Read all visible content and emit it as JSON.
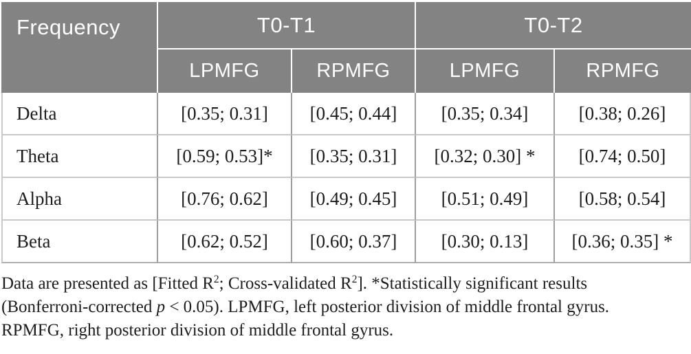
{
  "colors": {
    "header_bg": "#838383",
    "header_text": "#ffffff",
    "body_text": "#1c1c1c",
    "row_divider": "#c9c9c9",
    "column_divider": "#9e9e9e"
  },
  "table": {
    "header": {
      "frequency_label": "Frequency",
      "groups": [
        {
          "label": "T0-T1",
          "columns": [
            "LPMFG",
            "RPMFG"
          ]
        },
        {
          "label": "T0-T2",
          "columns": [
            "LPMFG",
            "RPMFG"
          ]
        }
      ]
    },
    "rows": [
      {
        "frequency": "Delta",
        "values": [
          "[0.35; 0.31]",
          "[0.45; 0.44]",
          "[0.35; 0.34]",
          "[0.38; 0.26]"
        ]
      },
      {
        "frequency": "Theta",
        "values": [
          "[0.59; 0.53]*",
          "[0.35; 0.31]",
          "[0.32; 0.30] *",
          "[0.74; 0.50]"
        ]
      },
      {
        "frequency": "Alpha",
        "values": [
          "[0.76; 0.62]",
          "[0.49; 0.45]",
          "[0.51; 0.49]",
          "[0.58; 0.54]"
        ]
      },
      {
        "frequency": "Beta",
        "values": [
          "[0.62; 0.52]",
          "[0.60; 0.37]",
          "[0.30; 0.13]",
          "[0.36; 0.35] *"
        ]
      }
    ]
  },
  "footnote": {
    "lines": [
      {
        "segments": [
          {
            "t": "Data are presented as [Fitted R"
          },
          {
            "t": "2",
            "s": "sup"
          },
          {
            "t": "; Cross-validated R"
          },
          {
            "t": "2",
            "s": "sup"
          },
          {
            "t": "]. *Statistically significant results"
          }
        ]
      },
      {
        "segments": [
          {
            "t": "(Bonferroni-corrected "
          },
          {
            "t": "p",
            "s": "i"
          },
          {
            "t": " < 0.05). LPMFG, left posterior division of middle frontal gyrus."
          }
        ]
      },
      {
        "segments": [
          {
            "t": "RPMFG, right posterior division of middle frontal gyrus."
          }
        ]
      }
    ]
  }
}
